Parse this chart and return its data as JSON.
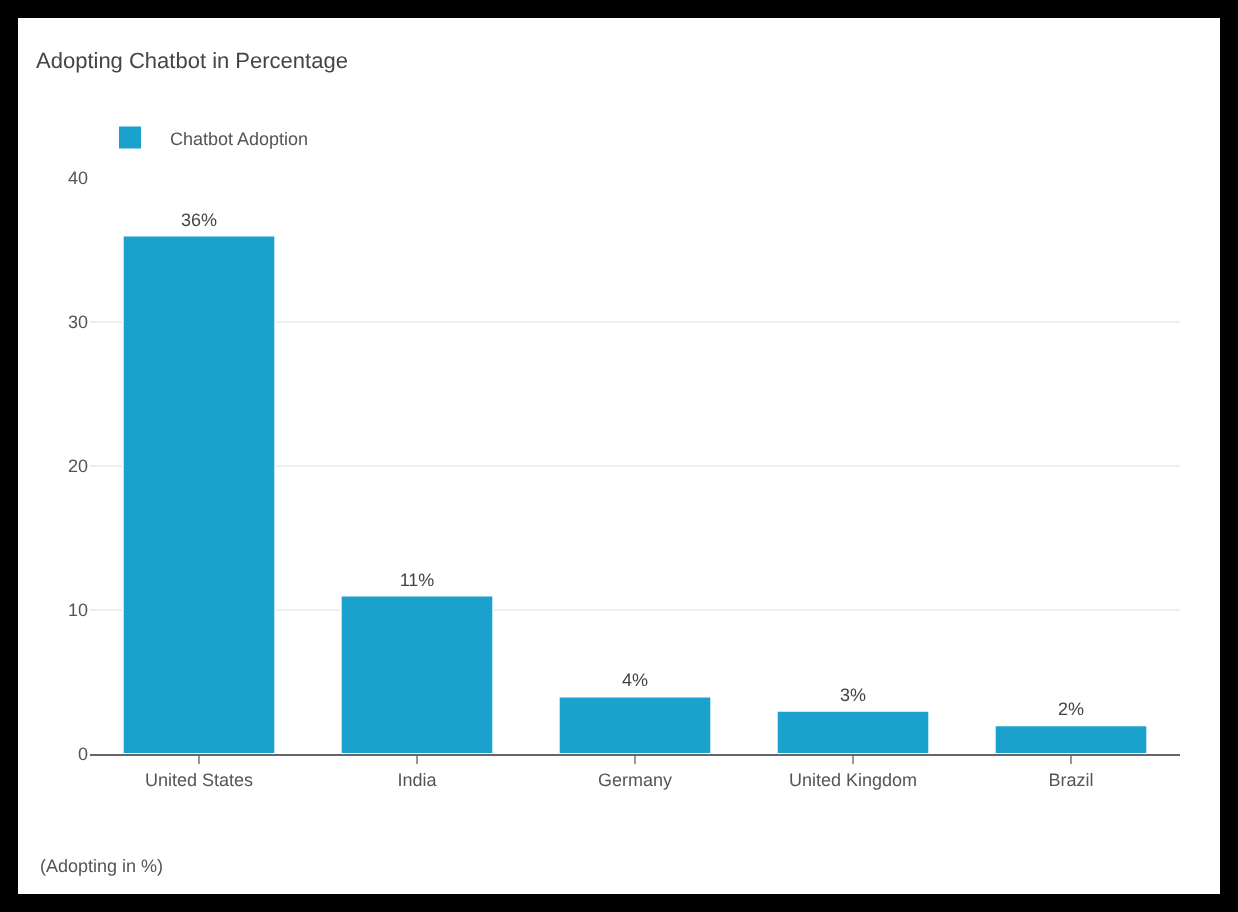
{
  "chart_data": {
    "type": "bar",
    "title": "Adopting Chatbot in Percentage",
    "categories": [
      "United States",
      "India",
      "Germany",
      "United Kingdom",
      "Brazil"
    ],
    "series": [
      {
        "name": "Chatbot Adoption",
        "color": "#1aa1cc",
        "values": [
          36,
          11,
          4,
          3,
          2
        ],
        "value_labels": [
          "36%",
          "11%",
          "4%",
          "3%",
          "2%"
        ]
      }
    ],
    "ylim": [
      0,
      40
    ],
    "yticks": [
      0,
      10,
      20,
      30,
      40
    ],
    "grid": "y",
    "legend": "top left",
    "annotations": [
      "(Adopting in %)"
    ]
  }
}
